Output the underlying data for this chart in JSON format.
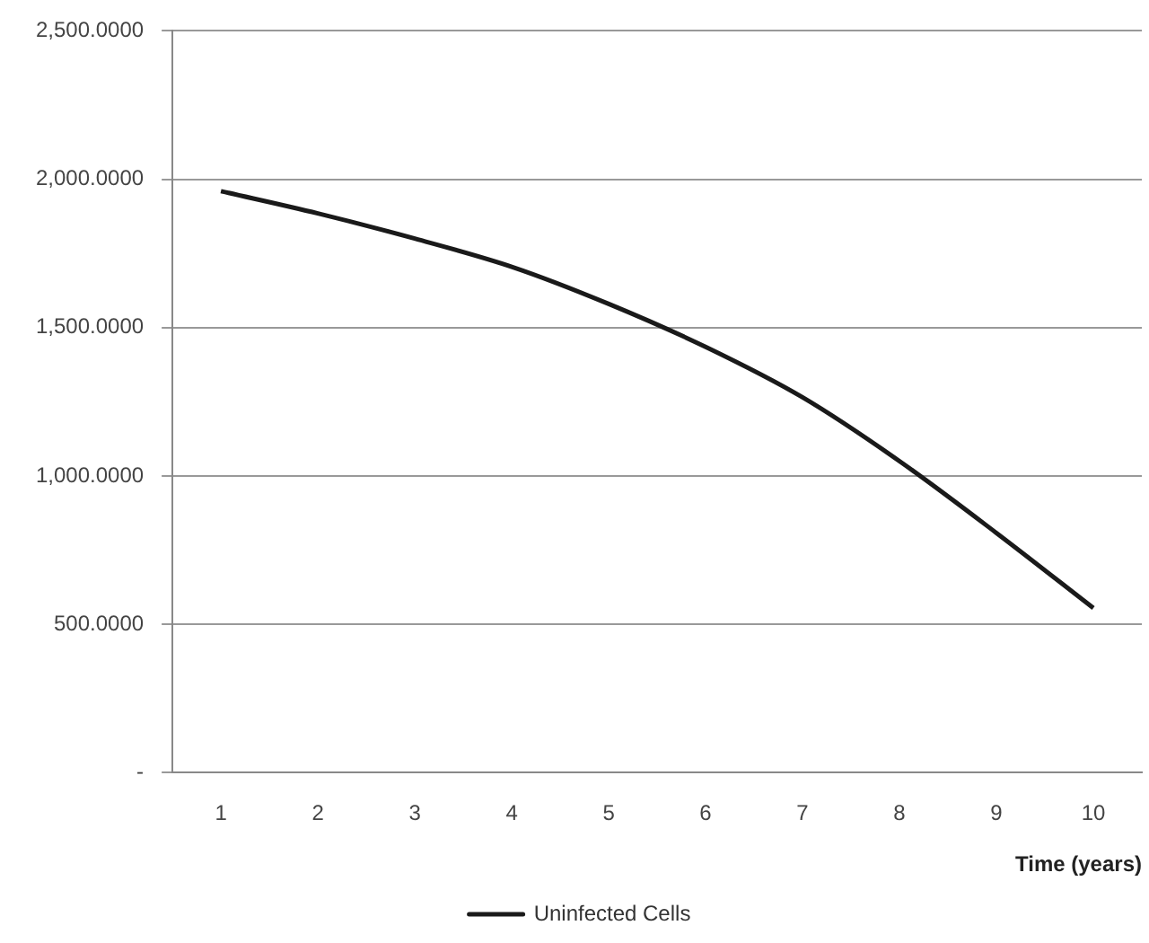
{
  "chart_data": {
    "type": "line",
    "xlabel": "Time (years)",
    "categories": [
      "1",
      "2",
      "3",
      "4",
      "5",
      "6",
      "7",
      "8",
      "9",
      "10"
    ],
    "series": [
      {
        "name": "Uninfected Cells",
        "color": "#1a1a1a",
        "values": [
          1960,
          1885,
          1800,
          1705,
          1580,
          1435,
          1265,
          1050,
          808,
          555
        ]
      }
    ],
    "ylim": [
      0,
      2500
    ],
    "yticks": [
      {
        "value": 0,
        "label": "-"
      },
      {
        "value": 500,
        "label": "500.0000"
      },
      {
        "value": 1000,
        "label": "1,000.0000"
      },
      {
        "value": 1500,
        "label": "1,500.0000"
      },
      {
        "value": 2000,
        "label": "2,000.0000"
      },
      {
        "value": 2500,
        "label": "2,500.0000"
      }
    ],
    "grid": "y",
    "legend": "bottom",
    "marker": "none",
    "line_style": "solid"
  }
}
